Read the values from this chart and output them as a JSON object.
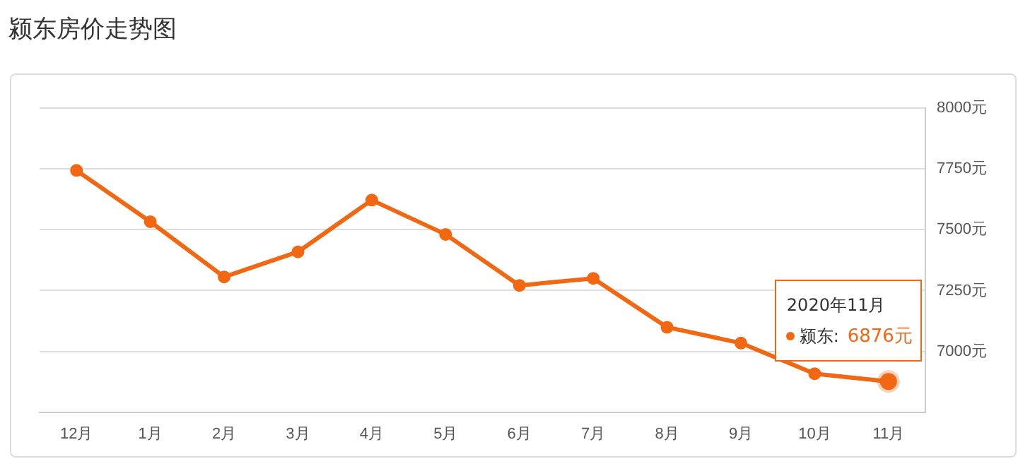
{
  "chart_data": {
    "type": "line",
    "title": "颍东房价走势图",
    "categories": [
      "12月",
      "1月",
      "2月",
      "3月",
      "4月",
      "5月",
      "6月",
      "7月",
      "8月",
      "9月",
      "10月",
      "11月"
    ],
    "series": [
      {
        "name": "颍东:",
        "color": "#f26711",
        "values": [
          7744,
          7533,
          7306,
          7409,
          7622,
          7481,
          7271,
          7300,
          7099,
          7034,
          6908,
          6876
        ],
        "value_labels": [
          null,
          null,
          null,
          null,
          null,
          null,
          null,
          null,
          null,
          null,
          null,
          "6876元"
        ]
      }
    ],
    "ylim": [
      6750,
      8000
    ],
    "yticks": [
      {
        "value": 6750,
        "label": null
      },
      {
        "value": 7000,
        "label": "7000元"
      },
      {
        "value": 7250,
        "label": "7250元"
      },
      {
        "value": 7500,
        "label": "7500元"
      },
      {
        "value": 7750,
        "label": "7750元"
      },
      {
        "value": 8000,
        "label": "8000元"
      }
    ],
    "grid": "y",
    "legend": "bottom right",
    "marker": "circle",
    "line_style": "solid",
    "annotations": [
      "2020年11月"
    ]
  }
}
